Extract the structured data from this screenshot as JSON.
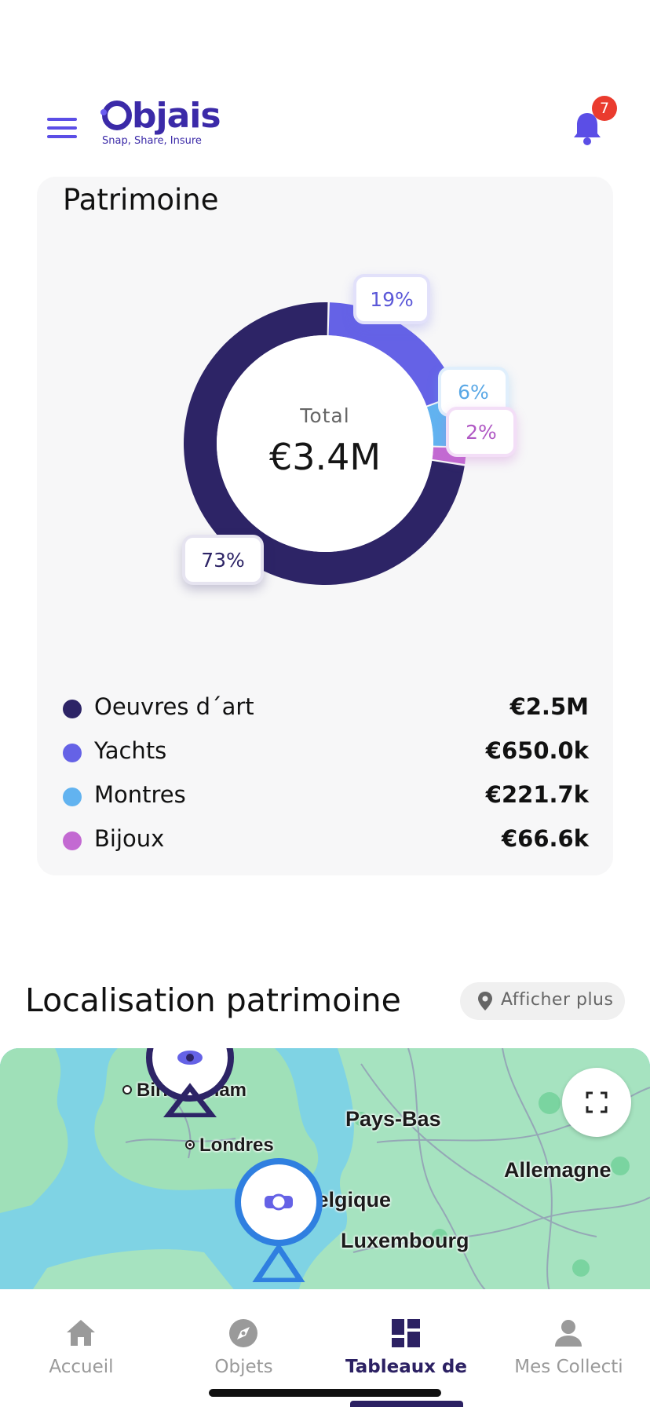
{
  "header": {
    "logo_text": "Objais",
    "logo_word_rest": "bjais",
    "tagline": "Snap, Share, Insure",
    "notification_count": "7",
    "icons": [
      "menu-icon",
      "bell-icon"
    ]
  },
  "portfolio": {
    "title": "Patrimoine",
    "total_label": "Total",
    "total_value": "€3.4M",
    "percent_labels": [
      "73%",
      "19%",
      "6%",
      "2%"
    ],
    "legend": [
      {
        "name": "Oeuvres d´art",
        "value": "€2.5M",
        "color": "#2d2466"
      },
      {
        "name": "Yachts",
        "value": "€650.0k",
        "color": "#6562e6"
      },
      {
        "name": "Montres",
        "value": "€221.7k",
        "color": "#62b3f0"
      },
      {
        "name": "Bijoux",
        "value": "€66.6k",
        "color": "#c36ad2"
      }
    ]
  },
  "chart_data": {
    "type": "pie",
    "categories": [
      "Oeuvres d´art",
      "Yachts",
      "Montres",
      "Bijoux"
    ],
    "values": [
      73,
      19,
      6,
      2
    ],
    "colors": [
      "#2d2466",
      "#6562e6",
      "#62b3f0",
      "#c36ad2"
    ]
  },
  "location": {
    "title": "Localisation patrimoine",
    "show_more": "Afficher plus",
    "map_labels": [
      "Birmingham",
      "Londres",
      "Pays-Bas",
      "Allemagne",
      "Belgique",
      "Luxembourg"
    ]
  },
  "nav": {
    "items": [
      {
        "label": "Accueil",
        "icon": "home-icon"
      },
      {
        "label": "Objets",
        "icon": "compass-icon"
      },
      {
        "label": "Tableaux de",
        "icon": "dashboard-icon"
      },
      {
        "label": "Mes Collecti",
        "icon": "person-icon"
      }
    ],
    "active": "Tableaux de",
    "active_color": "#2c2163",
    "inactive_color": "#9a9a9a"
  }
}
